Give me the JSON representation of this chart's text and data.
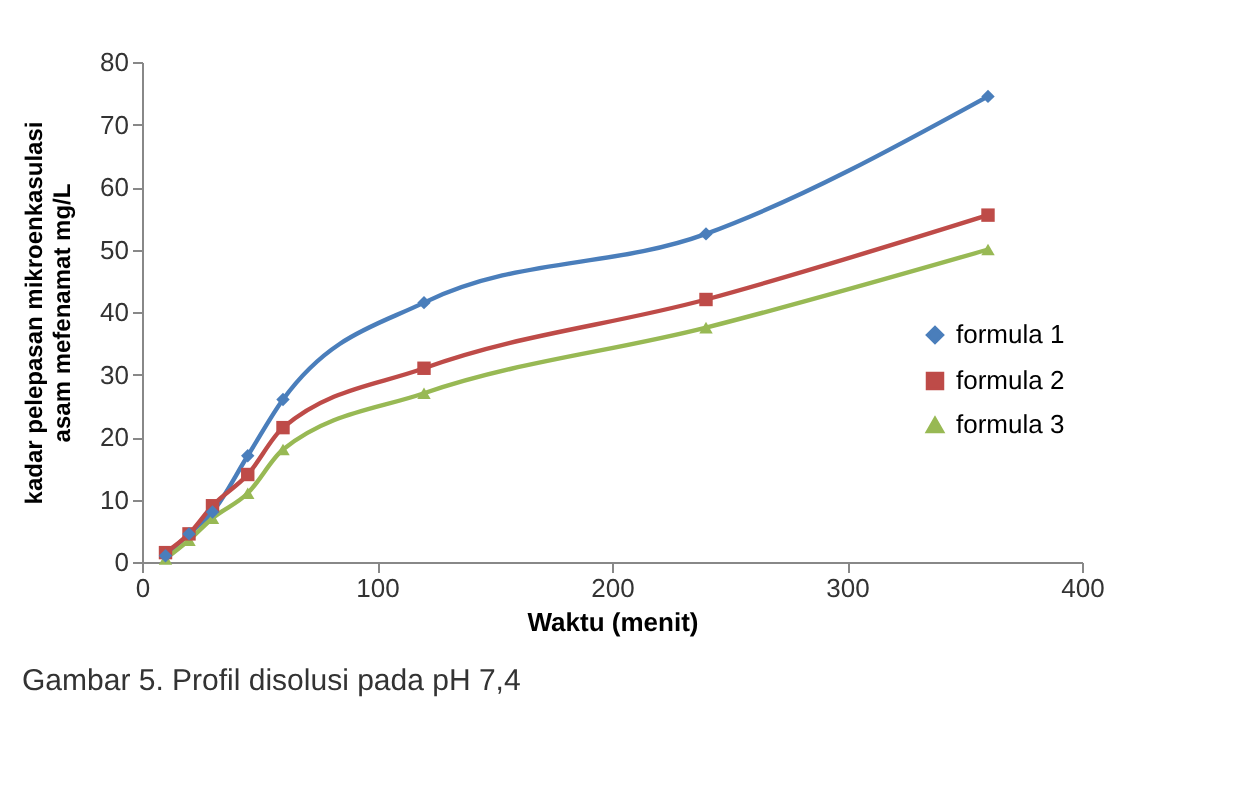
{
  "chart_data": {
    "type": "line",
    "xlabel": "Waktu (menit)",
    "ylabel": "kadar pelepasan mikroenkasulasi asam mefenamat mg/L",
    "x": [
      10,
      20,
      30,
      45,
      60,
      120,
      240,
      360
    ],
    "series": [
      {
        "name": "formula 1",
        "color": "#4a7ebb",
        "marker": "diamond",
        "values": [
          1,
          4.5,
          8,
          17,
          26,
          41.5,
          52.5,
          74.5
        ]
      },
      {
        "name": "formula 2",
        "color": "#be4b48",
        "marker": "square",
        "values": [
          1.5,
          4.5,
          9,
          14,
          21.5,
          31,
          42,
          55.5
        ]
      },
      {
        "name": "formula 3",
        "color": "#98b954",
        "marker": "triangle",
        "values": [
          0.5,
          3.5,
          7,
          11,
          18,
          27,
          37.5,
          50
        ]
      }
    ],
    "xlim": [
      0,
      400
    ],
    "xticks": [
      0,
      100,
      200,
      300,
      400
    ],
    "ylim": [
      0,
      80
    ],
    "yticks": [
      0,
      10,
      20,
      30,
      40,
      50,
      60,
      70,
      80
    ],
    "grid": false,
    "legend": "right",
    "line_style": "solid",
    "annotations": [
      "Gambar 5. Profil disolusi pada pH 7,4"
    ]
  }
}
